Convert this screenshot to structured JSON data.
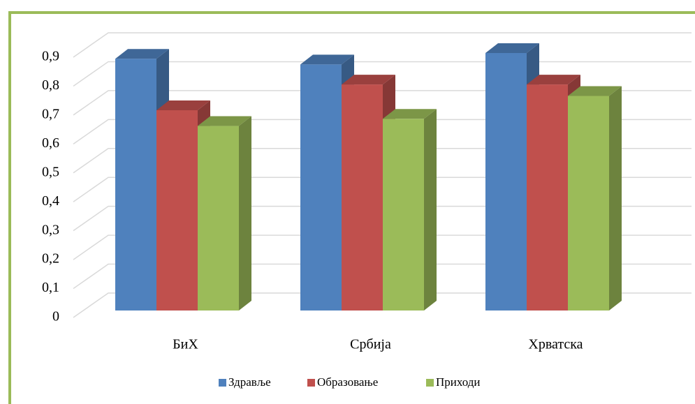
{
  "chart_data": {
    "type": "bar3d",
    "categories": [
      "БиХ",
      "Србија",
      "Хрватска"
    ],
    "series": [
      {
        "name": "Здравље",
        "color": "#4f81bd",
        "values": [
          0.88,
          0.86,
          0.9
        ]
      },
      {
        "name": "Образовање",
        "color": "#c0504d",
        "values": [
          0.7,
          0.79,
          0.79
        ]
      },
      {
        "name": "Приходи",
        "color": "#9bbb59",
        "values": [
          0.645,
          0.67,
          0.75
        ]
      }
    ],
    "ylim": [
      0,
      0.9
    ],
    "yticks": [
      0,
      {
        "value": 0.1,
        "label": "0,1"
      },
      {
        "value": 0.2,
        "label": "0,2"
      },
      {
        "value": 0.3,
        "label": "0,3"
      },
      {
        "value": 0.4,
        "label": "0,4"
      },
      {
        "value": 0.5,
        "label": "0,5"
      },
      {
        "value": 0.6,
        "label": "0,6"
      },
      {
        "value": 0.7,
        "label": "0,7"
      },
      {
        "value": 0.8,
        "label": "0,8"
      },
      {
        "value": 0.9,
        "label": "0,9"
      }
    ],
    "grid": true,
    "legend": "bottom"
  }
}
